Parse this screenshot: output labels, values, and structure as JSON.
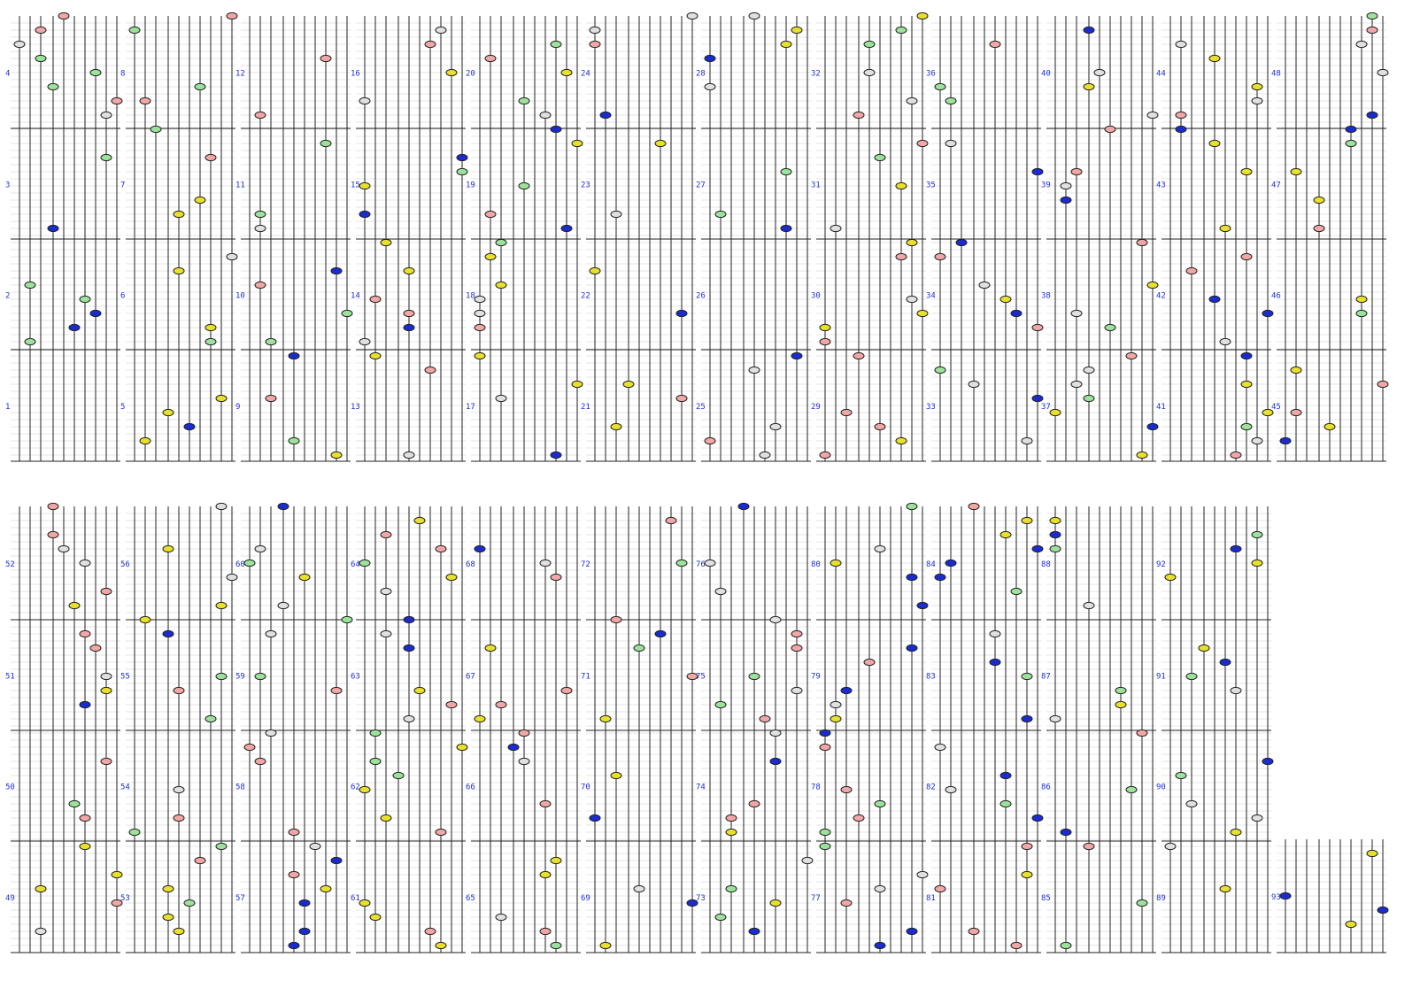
{
  "rows": [
    {
      "labels": [
        "4",
        "3",
        "2",
        "1"
      ]
    },
    {
      "labels": [
        "8",
        "7",
        "6",
        "5"
      ]
    },
    {
      "labels": [
        "12",
        "11",
        "10",
        "9"
      ]
    },
    {
      "labels": [
        "16",
        "15",
        "14",
        "13"
      ]
    },
    {
      "labels": [
        "20",
        "19",
        "18",
        "17"
      ]
    },
    {
      "labels": [
        "24",
        "23",
        "22",
        "21"
      ]
    },
    {
      "labels": [
        "28",
        "27",
        "26",
        "25"
      ]
    },
    {
      "labels": [
        "32",
        "31",
        "30",
        "29"
      ]
    },
    {
      "labels": [
        "36",
        "35",
        "34",
        "33"
      ]
    },
    {
      "labels": [
        "40",
        "39",
        "38",
        "37"
      ]
    },
    {
      "labels": [
        "44",
        "43",
        "42",
        "41"
      ]
    },
    {
      "labels": [
        "48",
        "47",
        "46",
        "45"
      ]
    },
    {
      "labels": [
        "52",
        "51",
        "50",
        "49"
      ]
    },
    {
      "labels": [
        "56",
        "55",
        "54",
        "53"
      ]
    },
    {
      "labels": [
        "60",
        "59",
        "58",
        "57"
      ]
    },
    {
      "labels": [
        "64",
        "63",
        "62",
        "61"
      ]
    },
    {
      "labels": [
        "68",
        "67",
        "66",
        "65"
      ]
    },
    {
      "labels": [
        "72",
        "71",
        "70",
        "69"
      ]
    },
    {
      "labels": [
        "76",
        "75",
        "74",
        "73"
      ]
    },
    {
      "labels": [
        "80",
        "79",
        "78",
        "77"
      ]
    },
    {
      "labels": [
        "84",
        "83",
        "82",
        "81"
      ]
    },
    {
      "labels": [
        "88",
        "87",
        "86",
        "85"
      ]
    },
    {
      "labels": [
        "92",
        "91",
        "90",
        "89"
      ]
    },
    {
      "labels": [
        "93"
      ]
    }
  ],
  "colors": {
    "label": "#1f2fd6",
    "note_white": "#e0e0e0",
    "note_green": "#9be39b",
    "note_pink": "#f2a6a6",
    "note_blue": "#1a2ccf",
    "note_yellow": "#e8e02a"
  }
}
